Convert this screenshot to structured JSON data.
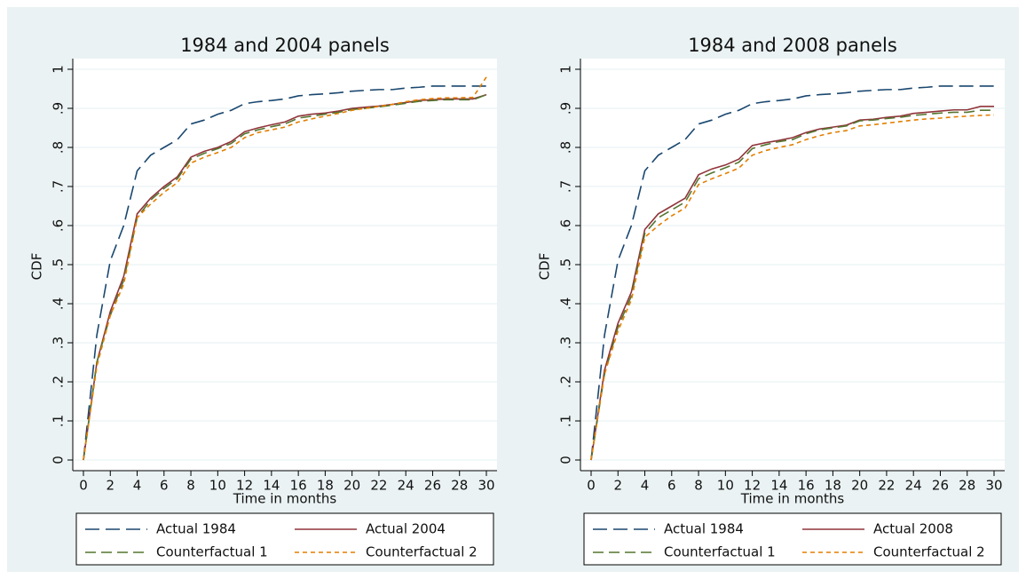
{
  "chart_data": [
    {
      "type": "line",
      "title": "1984 and 2004 panels",
      "x_label": "Time in months",
      "y_label": "CDF",
      "x": [
        0,
        1,
        2,
        3,
        4,
        5,
        6,
        7,
        8,
        9,
        10,
        11,
        12,
        13,
        14,
        15,
        16,
        17,
        18,
        19,
        20,
        21,
        22,
        23,
        24,
        25,
        26,
        27,
        28,
        29,
        30
      ],
      "series": [
        {
          "name": "Actual 1984",
          "color": "#1a476f",
          "values": [
            0,
            0.32,
            0.51,
            0.6,
            0.74,
            0.78,
            0.8,
            0.82,
            0.86,
            0.87,
            0.885,
            0.895,
            0.912,
            0.917,
            0.92,
            0.924,
            0.932,
            0.935,
            0.937,
            0.94,
            0.944,
            0.946,
            0.948,
            0.948,
            0.952,
            0.954,
            0.957,
            0.957,
            0.957,
            0.957,
            0.957
          ]
        },
        {
          "name": "Actual 2004",
          "color": "#90353b",
          "values": [
            0,
            0.25,
            0.38,
            0.47,
            0.63,
            0.67,
            0.7,
            0.725,
            0.775,
            0.79,
            0.8,
            0.815,
            0.84,
            0.85,
            0.858,
            0.865,
            0.88,
            0.885,
            0.888,
            0.893,
            0.9,
            0.903,
            0.906,
            0.91,
            0.915,
            0.92,
            0.922,
            0.924,
            0.924,
            0.924,
            0.935
          ]
        },
        {
          "name": "Counterfactual 1",
          "color": "#55752f",
          "values": [
            0,
            0.25,
            0.37,
            0.46,
            0.62,
            0.665,
            0.695,
            0.72,
            0.77,
            0.785,
            0.797,
            0.81,
            0.835,
            0.845,
            0.853,
            0.86,
            0.875,
            0.88,
            0.885,
            0.89,
            0.897,
            0.9,
            0.904,
            0.908,
            0.913,
            0.918,
            0.92,
            0.922,
            0.922,
            0.922,
            0.935
          ]
        },
        {
          "name": "Counterfactual 2",
          "color": "#e37e00",
          "values": [
            0,
            0.24,
            0.37,
            0.45,
            0.62,
            0.655,
            0.685,
            0.71,
            0.76,
            0.775,
            0.787,
            0.8,
            0.825,
            0.838,
            0.845,
            0.852,
            0.865,
            0.873,
            0.88,
            0.887,
            0.895,
            0.9,
            0.905,
            0.91,
            0.917,
            0.922,
            0.925,
            0.927,
            0.927,
            0.928,
            0.98
          ]
        }
      ],
      "xlim": [
        0,
        30
      ],
      "xticks": [
        0,
        2,
        4,
        6,
        8,
        10,
        12,
        14,
        16,
        18,
        20,
        22,
        24,
        26,
        28,
        30
      ],
      "ylim": [
        0,
        1
      ],
      "yticks": [
        0,
        {
          "value": 0.1,
          "label": ".1"
        },
        {
          "value": 0.2,
          "label": ".2"
        },
        {
          "value": 0.3,
          "label": ".3"
        },
        {
          "value": 0.4,
          "label": ".4"
        },
        {
          "value": 0.5,
          "label": ".5"
        },
        {
          "value": 0.6,
          "label": ".6"
        },
        {
          "value": 0.7,
          "label": ".7"
        },
        {
          "value": 0.8,
          "label": ".8"
        },
        {
          "value": 0.9,
          "label": ".9"
        },
        1
      ],
      "grid": true,
      "legend": "bottom"
    },
    {
      "type": "line",
      "title": "1984 and 2008 panels",
      "x_label": "Time in months",
      "y_label": "CDF",
      "x": [
        0,
        1,
        2,
        3,
        4,
        5,
        6,
        7,
        8,
        9,
        10,
        11,
        12,
        13,
        14,
        15,
        16,
        17,
        18,
        19,
        20,
        21,
        22,
        23,
        24,
        25,
        26,
        27,
        28,
        29,
        30
      ],
      "series": [
        {
          "name": "Actual 1984",
          "color": "#1a476f",
          "values": [
            0,
            0.32,
            0.51,
            0.6,
            0.74,
            0.78,
            0.8,
            0.82,
            0.86,
            0.87,
            0.885,
            0.895,
            0.912,
            0.917,
            0.92,
            0.924,
            0.932,
            0.935,
            0.937,
            0.94,
            0.944,
            0.946,
            0.948,
            0.948,
            0.952,
            0.954,
            0.957,
            0.957,
            0.957,
            0.957,
            0.957
          ]
        },
        {
          "name": "Actual 2008",
          "color": "#90353b",
          "values": [
            0,
            0.23,
            0.35,
            0.43,
            0.59,
            0.63,
            0.65,
            0.67,
            0.73,
            0.745,
            0.755,
            0.77,
            0.805,
            0.812,
            0.818,
            0.825,
            0.838,
            0.847,
            0.852,
            0.857,
            0.87,
            0.872,
            0.877,
            0.88,
            0.887,
            0.89,
            0.893,
            0.896,
            0.896,
            0.905,
            0.905
          ]
        },
        {
          "name": "Counterfactual 1",
          "color": "#55752f",
          "values": [
            0,
            0.22,
            0.34,
            0.42,
            0.58,
            0.62,
            0.64,
            0.66,
            0.72,
            0.735,
            0.748,
            0.762,
            0.797,
            0.807,
            0.815,
            0.82,
            0.835,
            0.845,
            0.85,
            0.855,
            0.868,
            0.87,
            0.874,
            0.877,
            0.882,
            0.885,
            0.888,
            0.89,
            0.89,
            0.895,
            0.895
          ]
        },
        {
          "name": "Counterfactual 2",
          "color": "#e37e00",
          "values": [
            0,
            0.22,
            0.33,
            0.41,
            0.57,
            0.6,
            0.625,
            0.645,
            0.705,
            0.72,
            0.733,
            0.747,
            0.78,
            0.792,
            0.8,
            0.807,
            0.82,
            0.83,
            0.838,
            0.843,
            0.855,
            0.858,
            0.862,
            0.866,
            0.87,
            0.873,
            0.875,
            0.878,
            0.88,
            0.882,
            0.883
          ]
        }
      ],
      "xlim": [
        0,
        30
      ],
      "xticks": [
        0,
        2,
        4,
        6,
        8,
        10,
        12,
        14,
        16,
        18,
        20,
        22,
        24,
        26,
        28,
        30
      ],
      "ylim": [
        0,
        1
      ],
      "yticks": [
        0,
        {
          "value": 0.1,
          "label": ".1"
        },
        {
          "value": 0.2,
          "label": ".2"
        },
        {
          "value": 0.3,
          "label": ".3"
        },
        {
          "value": 0.4,
          "label": ".4"
        },
        {
          "value": 0.5,
          "label": ".5"
        },
        {
          "value": 0.6,
          "label": ".6"
        },
        {
          "value": 0.7,
          "label": ".7"
        },
        {
          "value": 0.8,
          "label": ".8"
        },
        {
          "value": 0.9,
          "label": ".9"
        },
        1
      ],
      "grid": true,
      "legend": "bottom"
    }
  ]
}
